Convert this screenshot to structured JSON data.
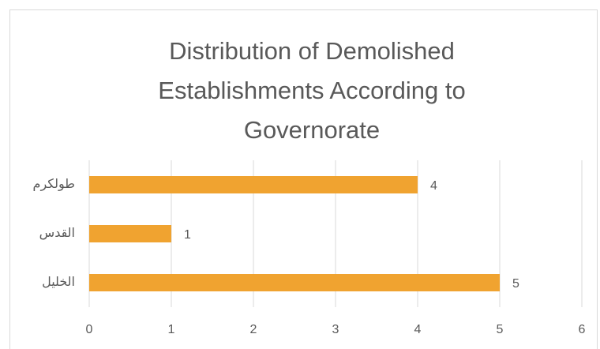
{
  "chart_data": {
    "type": "bar",
    "orientation": "horizontal",
    "title": "Distribution of Demolished Establishments According to Governorate",
    "categories": [
      "طولكرم",
      "القدس",
      "الخليل"
    ],
    "values": [
      4,
      1,
      5
    ],
    "color": "#f0a330",
    "xlim": [
      0,
      6
    ],
    "xticks": [
      0,
      1,
      2,
      3,
      4,
      5,
      6
    ],
    "grid": true
  }
}
